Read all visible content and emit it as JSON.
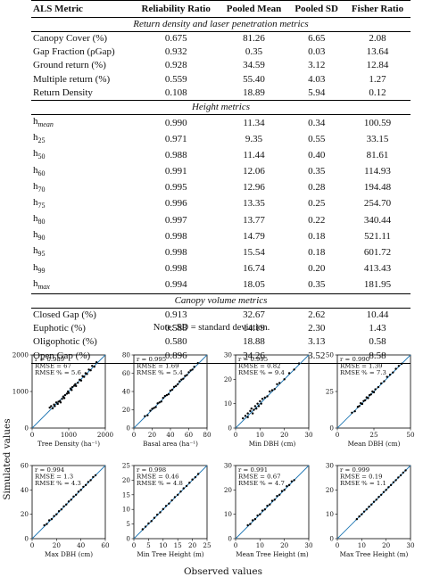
{
  "table": {
    "headers": [
      "ALS Metric",
      "Reliability Ratio",
      "Pooled Mean",
      "Pooled SD",
      "Fisher Ratio"
    ],
    "sections": [
      {
        "title": "Return density and laser penetration metrics",
        "rows": [
          {
            "metric": "Canopy Cover (%)",
            "rr": "0.675",
            "mean": "81.26",
            "sd": "6.65",
            "fr": "2.08"
          },
          {
            "metric": "Gap Fraction (ρGap)",
            "rr": "0.932",
            "mean": "0.35",
            "sd": "0.03",
            "fr": "13.64"
          },
          {
            "metric": "Ground return (%)",
            "rr": "0.928",
            "mean": "34.59",
            "sd": "3.12",
            "fr": "12.84"
          },
          {
            "metric": "Multiple return (%)",
            "rr": "0.559",
            "mean": "55.40",
            "sd": "4.03",
            "fr": "1.27"
          },
          {
            "metric": "Return Density",
            "rr": "0.108",
            "mean": "18.89",
            "sd": "5.94",
            "fr": "0.12"
          }
        ]
      },
      {
        "title": "Height metrics",
        "rows": [
          {
            "metric": "h",
            "sub": "mean",
            "rr": "0.990",
            "mean": "11.34",
            "sd": "0.34",
            "fr": "100.59"
          },
          {
            "metric": "h",
            "sub": "25",
            "rr": "0.971",
            "mean": "9.35",
            "sd": "0.55",
            "fr": "33.15"
          },
          {
            "metric": "h",
            "sub": "50",
            "rr": "0.988",
            "mean": "11.44",
            "sd": "0.40",
            "fr": "81.61"
          },
          {
            "metric": "h",
            "sub": "60",
            "rr": "0.991",
            "mean": "12.06",
            "sd": "0.35",
            "fr": "114.93"
          },
          {
            "metric": "h",
            "sub": "70",
            "rr": "0.995",
            "mean": "12.96",
            "sd": "0.28",
            "fr": "194.48"
          },
          {
            "metric": "h",
            "sub": "75",
            "rr": "0.996",
            "mean": "13.35",
            "sd": "0.25",
            "fr": "254.70"
          },
          {
            "metric": "h",
            "sub": "80",
            "rr": "0.997",
            "mean": "13.77",
            "sd": "0.22",
            "fr": "340.44"
          },
          {
            "metric": "h",
            "sub": "90",
            "rr": "0.998",
            "mean": "14.79",
            "sd": "0.18",
            "fr": "521.11"
          },
          {
            "metric": "h",
            "sub": "95",
            "rr": "0.998",
            "mean": "15.54",
            "sd": "0.18",
            "fr": "601.72"
          },
          {
            "metric": "h",
            "sub": "99",
            "rr": "0.998",
            "mean": "16.74",
            "sd": "0.20",
            "fr": "413.43"
          },
          {
            "metric": "h",
            "sub": "max",
            "rr": "0.994",
            "mean": "18.05",
            "sd": "0.35",
            "fr": "181.95"
          }
        ]
      },
      {
        "title": "Canopy volume metrics",
        "rows": [
          {
            "metric": "Closed Gap (%)",
            "rr": "0.913",
            "mean": "32.67",
            "sd": "2.62",
            "fr": "10.44"
          },
          {
            "metric": "Euphotic (%)",
            "rr": "0.588",
            "mean": "14.19",
            "sd": "2.30",
            "fr": "1.43"
          },
          {
            "metric": "Oligophotic (%)",
            "rr": "0.580",
            "mean": "18.88",
            "sd": "3.13",
            "fr": "0.58"
          },
          {
            "metric": "Open Gap (%)",
            "rr": "0.896",
            "mean": "34.26",
            "sd": "3.52",
            "fr": "8.58"
          }
        ]
      }
    ],
    "note": "Note: SD = standard deviation."
  },
  "figure": {
    "ylabel": "Simulated values",
    "xlabel": "Observed values",
    "line_color": "#1f77b4",
    "point_color": "#000000"
  },
  "chart_data": [
    {
      "type": "scatter",
      "xlabel": "Tree Density (ha⁻¹)",
      "lim": [
        0,
        2000
      ],
      "ticks": [
        0,
        1000,
        2000
      ],
      "stats": [
        "r = 0.989",
        "RMSE = 67",
        "RMSE % = 5.6"
      ],
      "points": [
        [
          480,
          560
        ],
        [
          520,
          600
        ],
        [
          560,
          540
        ],
        [
          600,
          640
        ],
        [
          620,
          600
        ],
        [
          660,
          700
        ],
        [
          700,
          660
        ],
        [
          720,
          720
        ],
        [
          760,
          740
        ],
        [
          780,
          700
        ],
        [
          820,
          800
        ],
        [
          850,
          860
        ],
        [
          880,
          820
        ],
        [
          900,
          900
        ],
        [
          950,
          940
        ],
        [
          980,
          1000
        ],
        [
          1000,
          960
        ],
        [
          1050,
          1080
        ],
        [
          1080,
          1040
        ],
        [
          1100,
          1120
        ],
        [
          1150,
          1160
        ],
        [
          1180,
          1200
        ],
        [
          1200,
          1150
        ],
        [
          1250,
          1240
        ],
        [
          1300,
          1320
        ],
        [
          1340,
          1300
        ],
        [
          1380,
          1420
        ],
        [
          1420,
          1400
        ],
        [
          1460,
          1500
        ],
        [
          1500,
          1480
        ],
        [
          1550,
          1600
        ],
        [
          1600,
          1580
        ],
        [
          1640,
          1700
        ],
        [
          1700,
          1680
        ],
        [
          1760,
          1800
        ]
      ]
    },
    {
      "type": "scatter",
      "xlabel": "Basal area (ha⁻¹)",
      "lim": [
        0,
        80
      ],
      "ticks": [
        0,
        20,
        40,
        60,
        80
      ],
      "stats": [
        "r = 0.995",
        "RMSE = 1.69",
        "RMSE % = 5.4"
      ],
      "points": [
        [
          12,
          13
        ],
        [
          15,
          14
        ],
        [
          18,
          19
        ],
        [
          20,
          21
        ],
        [
          22,
          22
        ],
        [
          24,
          23
        ],
        [
          26,
          27
        ],
        [
          28,
          28
        ],
        [
          30,
          29
        ],
        [
          32,
          33
        ],
        [
          34,
          35
        ],
        [
          36,
          36
        ],
        [
          38,
          37
        ],
        [
          40,
          41
        ],
        [
          42,
          42
        ],
        [
          44,
          45
        ],
        [
          46,
          46
        ],
        [
          48,
          48
        ],
        [
          50,
          51
        ],
        [
          52,
          53
        ],
        [
          54,
          54
        ],
        [
          56,
          57
        ],
        [
          58,
          58
        ],
        [
          60,
          61
        ],
        [
          62,
          63
        ],
        [
          64,
          64
        ],
        [
          66,
          67
        ],
        [
          70,
          71
        ]
      ]
    },
    {
      "type": "scatter",
      "xlabel": "Min DBH (cm)",
      "lim": [
        0,
        30
      ],
      "ticks": [
        0,
        10,
        20,
        30
      ],
      "stats": [
        "r = 0.995",
        "RMSE = 0.82",
        "RMSE % = 9.4"
      ],
      "points": [
        [
          3,
          4
        ],
        [
          4,
          5
        ],
        [
          5,
          6
        ],
        [
          5,
          4.5
        ],
        [
          6,
          7
        ],
        [
          6.5,
          8
        ],
        [
          7,
          6
        ],
        [
          7.5,
          7.5
        ],
        [
          8,
          9
        ],
        [
          8.5,
          8
        ],
        [
          9,
          10
        ],
        [
          9.5,
          9
        ],
        [
          10,
          11
        ],
        [
          10.5,
          10
        ],
        [
          11,
          12
        ],
        [
          12,
          12.5
        ],
        [
          13,
          13
        ],
        [
          14,
          15
        ],
        [
          15,
          15.5
        ],
        [
          16,
          16
        ],
        [
          17,
          18
        ],
        [
          18,
          18.5
        ],
        [
          20,
          20
        ],
        [
          22,
          22.5
        ],
        [
          24,
          24
        ],
        [
          26,
          26.5
        ]
      ]
    },
    {
      "type": "scatter",
      "xlabel": "Mean DBH (cm)",
      "lim": [
        0,
        50
      ],
      "ticks": [
        0,
        25,
        50
      ],
      "stats": [
        "r = 0.990",
        "RMSE = 1.39",
        "RMSE % = 7.3"
      ],
      "points": [
        [
          10,
          10.5
        ],
        [
          12,
          11.5
        ],
        [
          14,
          14.5
        ],
        [
          15,
          15
        ],
        [
          16,
          17
        ],
        [
          17,
          16.5
        ],
        [
          18,
          18.5
        ],
        [
          19,
          19
        ],
        [
          20,
          21
        ],
        [
          21,
          20.5
        ],
        [
          22,
          22.5
        ],
        [
          23,
          23
        ],
        [
          24,
          25
        ],
        [
          25,
          24.5
        ],
        [
          26,
          26.5
        ],
        [
          28,
          28
        ],
        [
          30,
          30.5
        ],
        [
          32,
          32
        ],
        [
          34,
          35
        ],
        [
          36,
          36.5
        ],
        [
          38,
          38
        ],
        [
          40,
          40.5
        ],
        [
          42,
          42.5
        ],
        [
          44,
          44
        ]
      ]
    },
    {
      "type": "scatter",
      "xlabel": "Max DBH (cm)",
      "lim": [
        0,
        60
      ],
      "ticks": [
        0,
        20,
        40,
        60
      ],
      "stats": [
        "r = 0.994",
        "RMSE = 1.3",
        "RMSE % = 4.3"
      ],
      "points": [
        [
          10,
          11
        ],
        [
          12,
          12
        ],
        [
          14,
          15
        ],
        [
          16,
          16
        ],
        [
          18,
          18.5
        ],
        [
          20,
          20
        ],
        [
          22,
          22.5
        ],
        [
          24,
          24
        ],
        [
          26,
          26.5
        ],
        [
          28,
          28
        ],
        [
          30,
          30.5
        ],
        [
          32,
          32
        ],
        [
          34,
          34.5
        ],
        [
          36,
          36
        ],
        [
          38,
          38.5
        ],
        [
          40,
          40
        ],
        [
          42,
          42.5
        ],
        [
          44,
          44
        ],
        [
          46,
          46.5
        ],
        [
          48,
          48
        ],
        [
          50,
          50.5
        ],
        [
          52,
          52
        ]
      ]
    },
    {
      "type": "scatter",
      "xlabel": "Min Tree Height (m)",
      "lim": [
        0,
        25
      ],
      "ticks": [
        0,
        5,
        10,
        15,
        20,
        25
      ],
      "stats": [
        "r = 0.998",
        "RMSE = 0.46",
        "RMSE % = 4.8"
      ],
      "points": [
        [
          3,
          3.2
        ],
        [
          4,
          4.1
        ],
        [
          5,
          5.2
        ],
        [
          6,
          6
        ],
        [
          7,
          7.1
        ],
        [
          8,
          8.2
        ],
        [
          9,
          9
        ],
        [
          10,
          10.1
        ],
        [
          11,
          11.2
        ],
        [
          12,
          12
        ],
        [
          13,
          13.1
        ],
        [
          14,
          14.2
        ],
        [
          15,
          15
        ],
        [
          16,
          16.1
        ],
        [
          17,
          17.2
        ],
        [
          18,
          18
        ],
        [
          19,
          19.1
        ],
        [
          20,
          20.2
        ],
        [
          21,
          21
        ],
        [
          22,
          22.1
        ]
      ]
    },
    {
      "type": "scatter",
      "xlabel": "Mean Tree Height (m)",
      "lim": [
        0,
        30
      ],
      "ticks": [
        0,
        10,
        20,
        30
      ],
      "stats": [
        "r = 0.991",
        "RMSE = 0.67",
        "RMSE % = 4.7"
      ],
      "points": [
        [
          5,
          5.5
        ],
        [
          6,
          6
        ],
        [
          7,
          7.5
        ],
        [
          8,
          8
        ],
        [
          9,
          9.5
        ],
        [
          10,
          10
        ],
        [
          11,
          11.5
        ],
        [
          12,
          12
        ],
        [
          13,
          13.5
        ],
        [
          14,
          14
        ],
        [
          15,
          15.5
        ],
        [
          16,
          16
        ],
        [
          17,
          17.5
        ],
        [
          18,
          18
        ],
        [
          19,
          19.5
        ],
        [
          20,
          20
        ],
        [
          21,
          21.5
        ],
        [
          22,
          22
        ],
        [
          23,
          23.5
        ],
        [
          24,
          24
        ]
      ]
    },
    {
      "type": "scatter",
      "xlabel": "Max Tree Height (m)",
      "lim": [
        0,
        30
      ],
      "ticks": [
        0,
        10,
        20,
        30
      ],
      "stats": [
        "r = 0.999",
        "RMSE = 0.19",
        "RMSE % = 1.1"
      ],
      "points": [
        [
          8,
          8
        ],
        [
          9,
          9.1
        ],
        [
          10,
          10
        ],
        [
          11,
          11.1
        ],
        [
          12,
          12
        ],
        [
          13,
          13.1
        ],
        [
          14,
          14
        ],
        [
          15,
          15.1
        ],
        [
          16,
          16
        ],
        [
          17,
          17.1
        ],
        [
          18,
          18
        ],
        [
          19,
          19.1
        ],
        [
          20,
          20
        ],
        [
          21,
          21.1
        ],
        [
          22,
          22
        ],
        [
          23,
          23.1
        ],
        [
          24,
          24
        ],
        [
          25,
          25.1
        ],
        [
          26,
          26
        ],
        [
          27,
          27.1
        ],
        [
          28,
          28
        ]
      ]
    }
  ]
}
